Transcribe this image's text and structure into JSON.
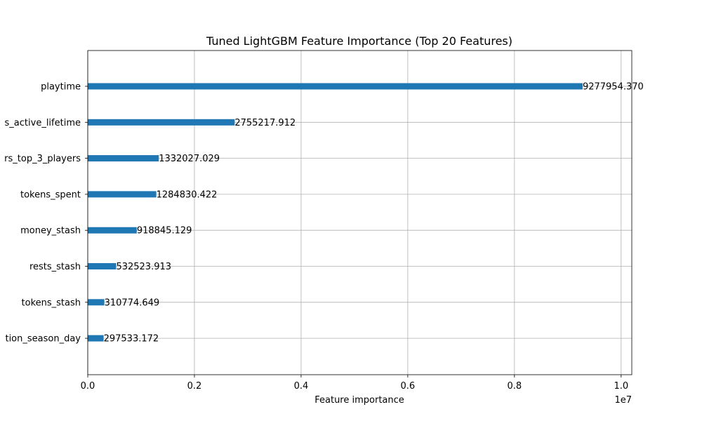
{
  "chart_data": {
    "type": "bar",
    "orientation": "horizontal",
    "title": "Tuned LightGBM Feature Importance (Top 20 Features)",
    "xlabel": "Feature importance",
    "ylabel": "",
    "x_offset_label": "1e7",
    "xlim": [
      0,
      10200000
    ],
    "x_ticks": [
      0,
      2000000,
      4000000,
      6000000,
      8000000,
      10000000
    ],
    "x_tick_labels": [
      "0.0",
      "0.2",
      "0.4",
      "0.6",
      "0.8",
      "1.0"
    ],
    "grid": true,
    "bar_color": "#1f77b4",
    "categories": [
      "playtime",
      "s_active_lifetime",
      "rs_top_3_players",
      "tokens_spent",
      "money_stash",
      "rests_stash",
      "tokens_stash",
      "tion_season_day"
    ],
    "values": [
      9277954.37,
      2755217.912,
      1332027.029,
      1284830.422,
      918845.129,
      532523.913,
      310774.649,
      297533.172
    ],
    "value_labels": [
      "9277954.370",
      "2755217.912",
      "1332027.029",
      "1284830.422",
      "918845.129",
      "532523.913",
      "310774.649",
      "297533.172"
    ]
  }
}
